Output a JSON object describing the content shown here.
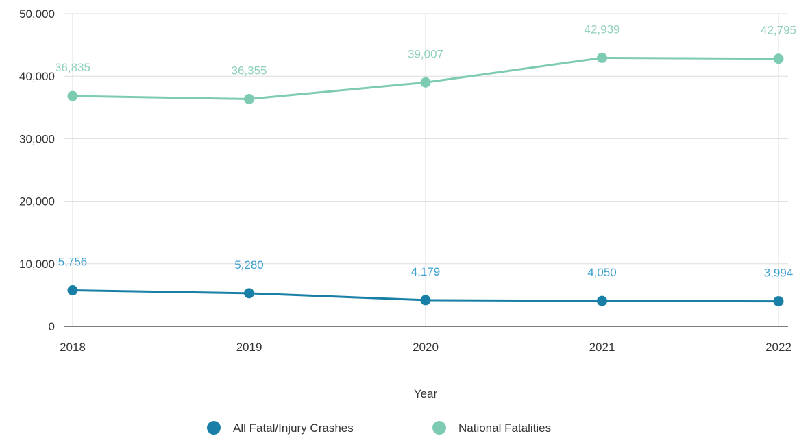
{
  "chart_data": {
    "type": "line",
    "title": "",
    "xlabel": "Year",
    "ylabel": "",
    "categories": [
      "2018",
      "2019",
      "2020",
      "2021",
      "2022"
    ],
    "ylim": [
      0,
      50000
    ],
    "yticks": [
      0,
      10000,
      20000,
      30000,
      40000,
      50000
    ],
    "ytick_labels": [
      "0",
      "10,000",
      "20,000",
      "30,000",
      "40,000",
      "50,000"
    ],
    "grid": true,
    "legend": "bottom",
    "series": [
      {
        "name": "All Fatal/Injury Crashes",
        "values": [
          5756,
          5280,
          4179,
          4050,
          3994
        ],
        "labels": [
          "5,756",
          "5,280",
          "4,179",
          "4,050",
          "3,994"
        ],
        "color": "#1a7fa6",
        "label_color": "#3d9fd0"
      },
      {
        "name": "National Fatalities",
        "values": [
          36835,
          36355,
          39007,
          42939,
          42795
        ],
        "labels": [
          "36,835",
          "36,355",
          "39,007",
          "42,939",
          "42,795"
        ],
        "color": "#7ecbb3",
        "label_color": "#8fd1bd"
      }
    ]
  }
}
